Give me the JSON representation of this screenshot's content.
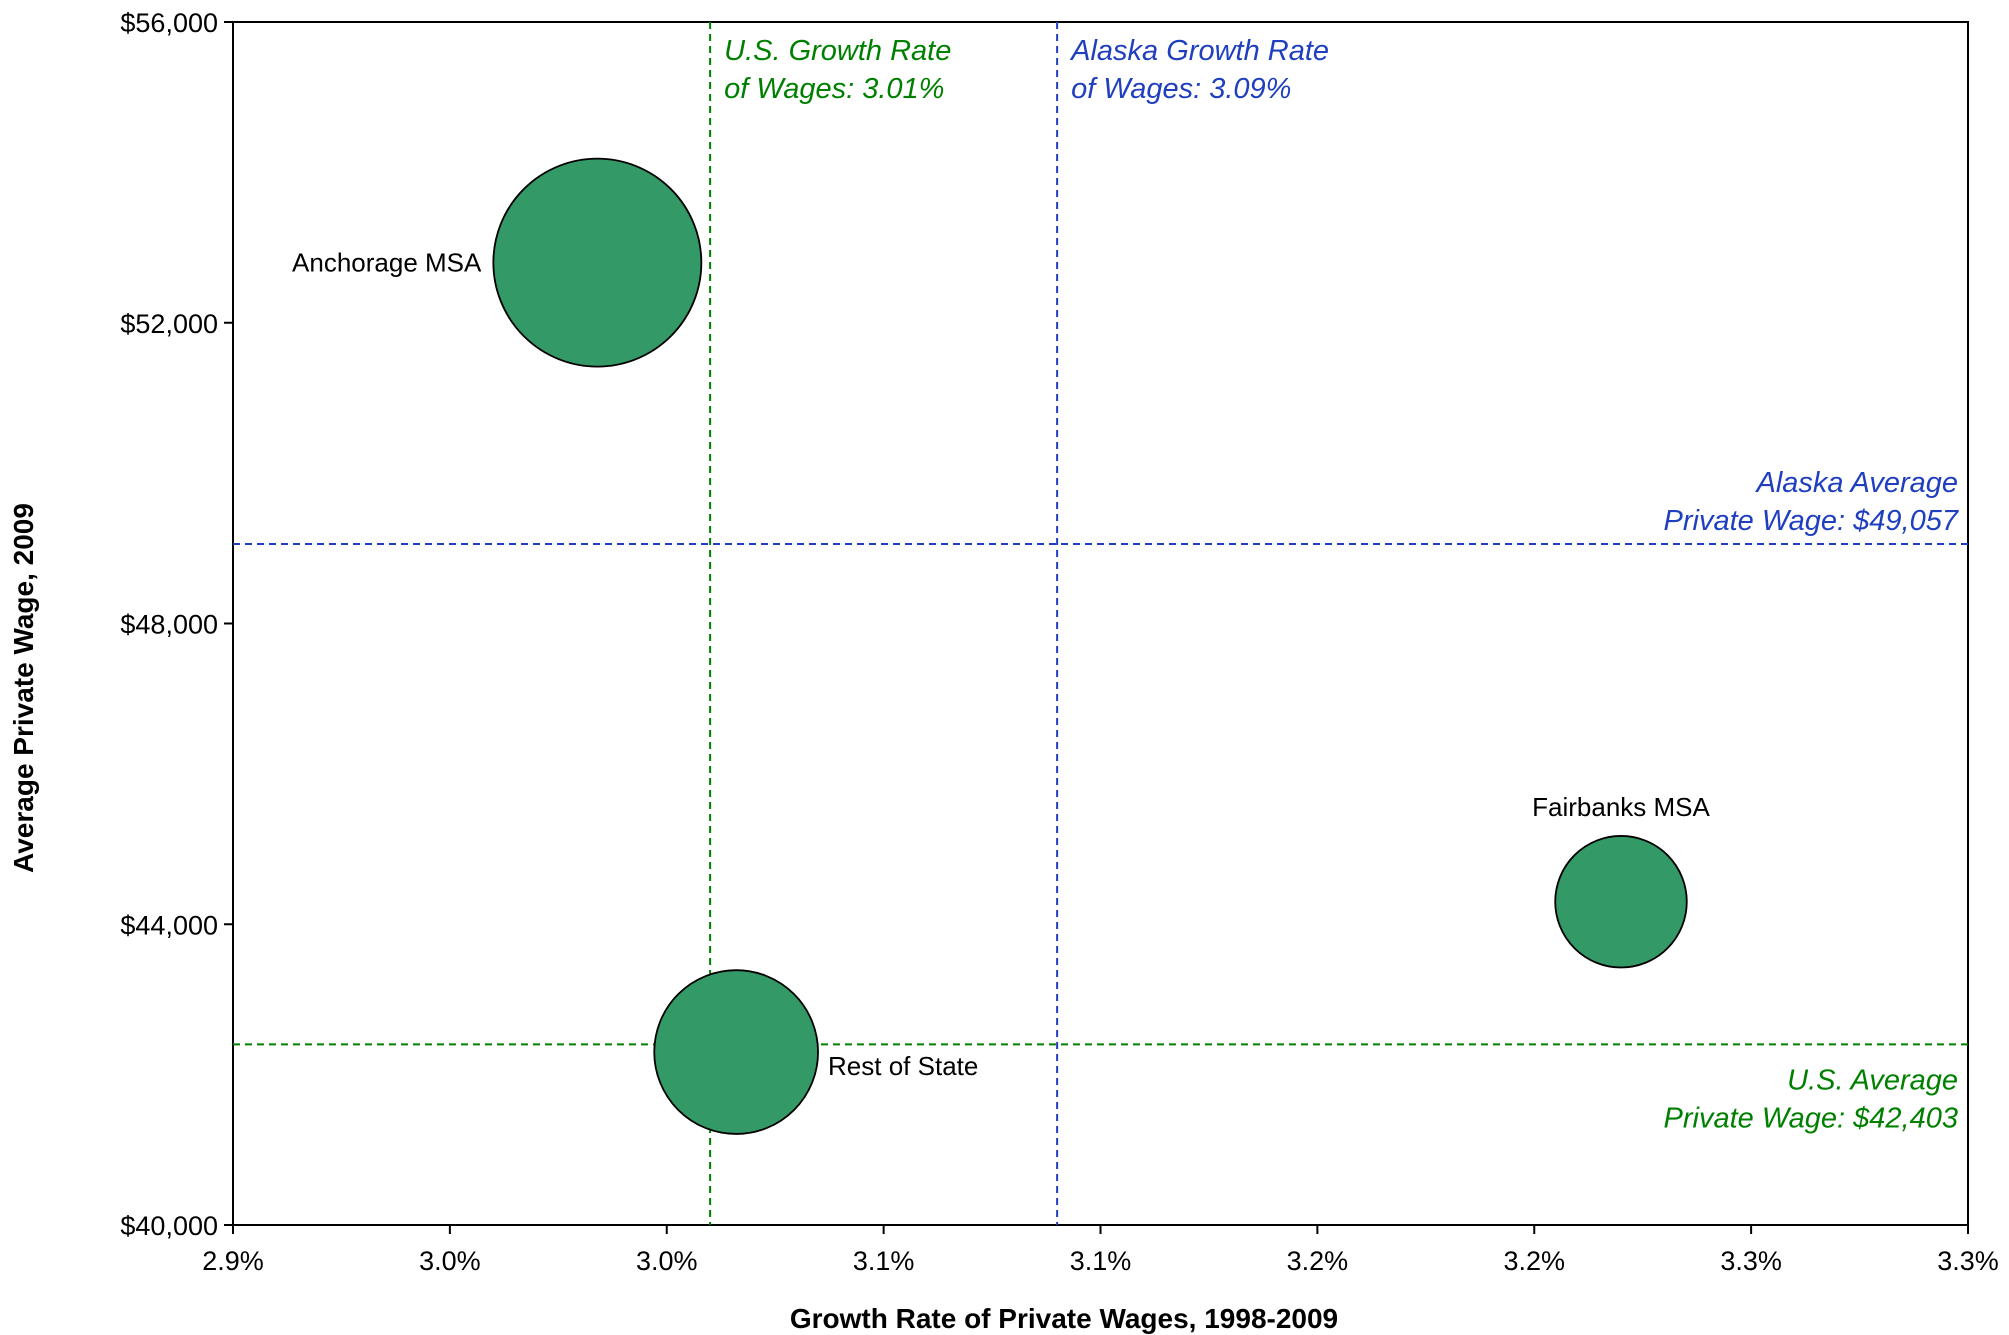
{
  "chart_data": {
    "type": "bubble",
    "xlabel": "Growth Rate of Private Wages, 1998-2009",
    "ylabel": "Average Private Wage, 2009",
    "xlim": [
      2.9,
      3.3
    ],
    "ylim": [
      40000,
      56000
    ],
    "x_ticks": [
      2.9,
      2.95,
      3.0,
      3.05,
      3.1,
      3.15,
      3.2,
      3.25,
      3.3
    ],
    "x_tick_labels": [
      "2.9%",
      "3.0%",
      "3.0%",
      "3.1%",
      "3.1%",
      "3.2%",
      "3.2%",
      "3.3%",
      "3.3%"
    ],
    "y_ticks": [
      40000,
      44000,
      48000,
      52000,
      56000
    ],
    "y_tick_labels": [
      "$40,000",
      "$44,000",
      "$48,000",
      "$52,000",
      "$56,000"
    ],
    "grid": false,
    "colors": {
      "bubble_fill": "#339966",
      "bubble_stroke": "#000000",
      "us_reference": "#008000",
      "alaska_reference": "#1f3fbf"
    },
    "points": [
      {
        "label": "Anchorage MSA",
        "x": 2.984,
        "y": 52800,
        "relative_size": 1.0,
        "label_side": "left"
      },
      {
        "label": "Rest of State",
        "x": 3.016,
        "y": 42300,
        "relative_size": 0.62,
        "label_side": "right"
      },
      {
        "label": "Fairbanks MSA",
        "x": 3.22,
        "y": 44300,
        "relative_size": 0.4,
        "label_side": "above"
      }
    ],
    "reference_lines": [
      {
        "id": "us-growth",
        "orientation": "vertical",
        "value": 3.01,
        "color": "#008000",
        "label_lines": [
          "U.S. Growth Rate",
          "of  Wages: 3.01%"
        ]
      },
      {
        "id": "alaska-growth",
        "orientation": "vertical",
        "value": 3.09,
        "color": "#1f3fbf",
        "label_lines": [
          "Alaska Growth Rate",
          "of Wages: 3.09%"
        ]
      },
      {
        "id": "alaska-average",
        "orientation": "horizontal",
        "value": 49057,
        "color": "#1f3fbf",
        "label_lines": [
          "Alaska Average",
          "Private Wage: $49,057"
        ]
      },
      {
        "id": "us-average",
        "orientation": "horizontal",
        "value": 42403,
        "color": "#008000",
        "label_lines": [
          "U.S. Average",
          "Private Wage: $42,403"
        ]
      }
    ]
  }
}
